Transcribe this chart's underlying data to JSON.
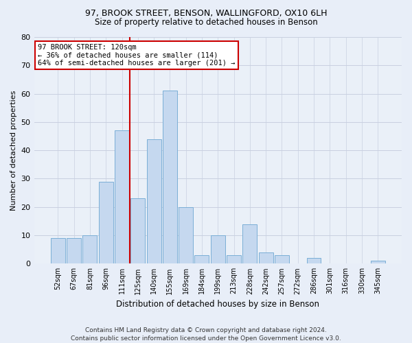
{
  "title1": "97, BROOK STREET, BENSON, WALLINGFORD, OX10 6LH",
  "title2": "Size of property relative to detached houses in Benson",
  "xlabel": "Distribution of detached houses by size in Benson",
  "ylabel": "Number of detached properties",
  "categories": [
    "52sqm",
    "67sqm",
    "81sqm",
    "96sqm",
    "111sqm",
    "125sqm",
    "140sqm",
    "155sqm",
    "169sqm",
    "184sqm",
    "199sqm",
    "213sqm",
    "228sqm",
    "242sqm",
    "257sqm",
    "272sqm",
    "286sqm",
    "301sqm",
    "316sqm",
    "330sqm",
    "345sqm"
  ],
  "values": [
    9,
    9,
    10,
    29,
    47,
    23,
    44,
    61,
    20,
    3,
    10,
    3,
    14,
    4,
    3,
    0,
    2,
    0,
    0,
    0,
    1
  ],
  "bar_color": "#c5d8ef",
  "bar_edge_color": "#7aaed6",
  "vline_color": "#cc0000",
  "vline_x": 4.5,
  "ylim": [
    0,
    80
  ],
  "yticks": [
    0,
    10,
    20,
    30,
    40,
    50,
    60,
    70,
    80
  ],
  "annotation_text": "97 BROOK STREET: 120sqm\n← 36% of detached houses are smaller (114)\n64% of semi-detached houses are larger (201) →",
  "annotation_box_color": "#ffffff",
  "annotation_box_edge": "#cc0000",
  "footer1": "Contains HM Land Registry data © Crown copyright and database right 2024.",
  "footer2": "Contains public sector information licensed under the Open Government Licence v3.0.",
  "background_color": "#e8eef8",
  "plot_background": "#eaf0f8",
  "grid_color": "#c8d0e0",
  "title1_fontsize": 9,
  "title2_fontsize": 8.5,
  "ylabel_fontsize": 8,
  "xlabel_fontsize": 8.5,
  "tick_fontsize": 7,
  "annotation_fontsize": 7.5,
  "footer_fontsize": 6.5
}
